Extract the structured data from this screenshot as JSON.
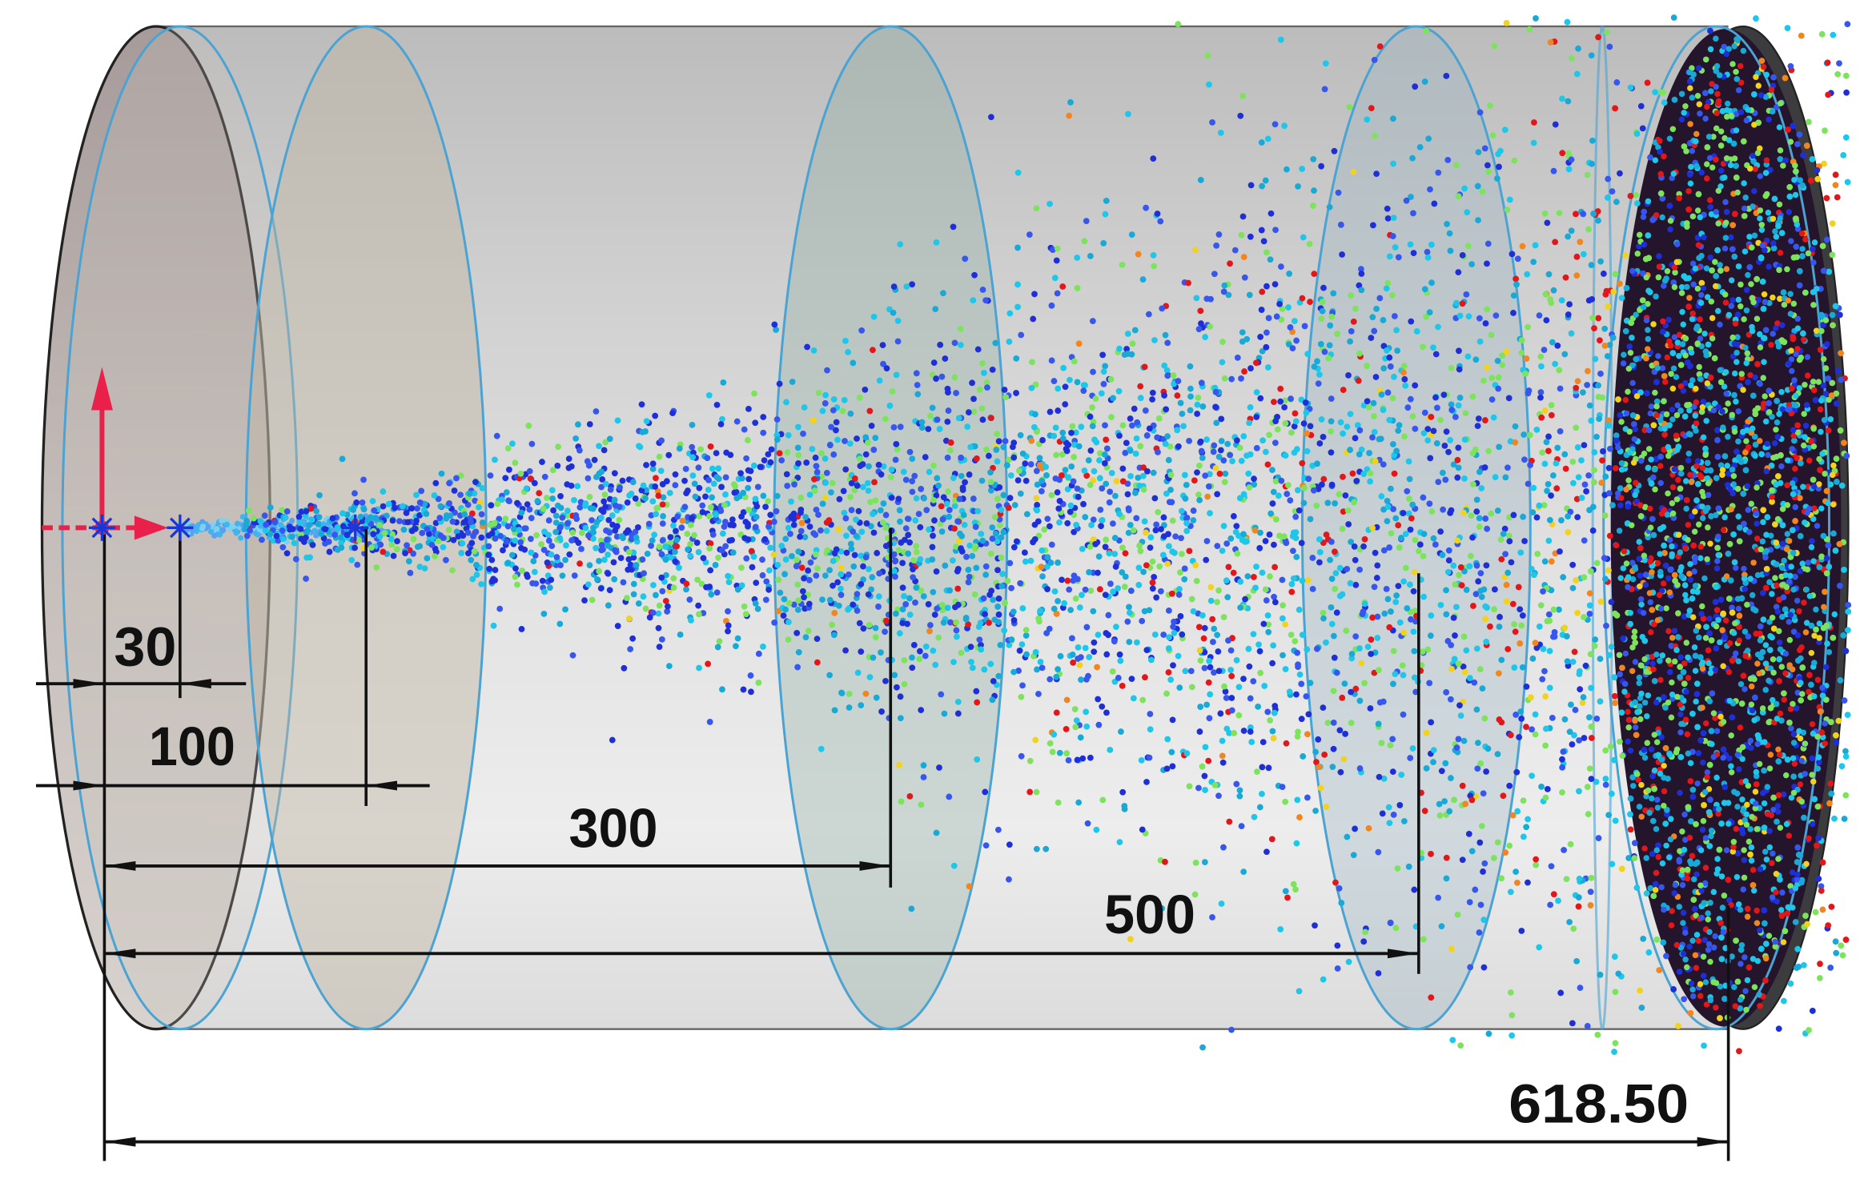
{
  "dimensions": {
    "d30": "30",
    "d100": "100",
    "d300": "300",
    "d500": "500",
    "d618": "618.50"
  },
  "colors": {
    "particle_palette": [
      "#1f2fd8",
      "#3656ee",
      "#1ec6ea",
      "#19a9d6",
      "#7ee35c",
      "#f2d21c",
      "#f2851e",
      "#e3161a"
    ],
    "jet_palette": [
      "#7fd0f0",
      "#3fb4ee",
      "#5aa0f0"
    ],
    "origin_axis": "#e8204a",
    "point_marker": "#1a36d6",
    "dimension_line": "#111111",
    "plane_outline": "#4aa3d2",
    "outlet_face": "#24152c"
  },
  "icons": {
    "origin": "coordinate-axes-icon",
    "point_marker": "asterisk-marker-icon"
  }
}
